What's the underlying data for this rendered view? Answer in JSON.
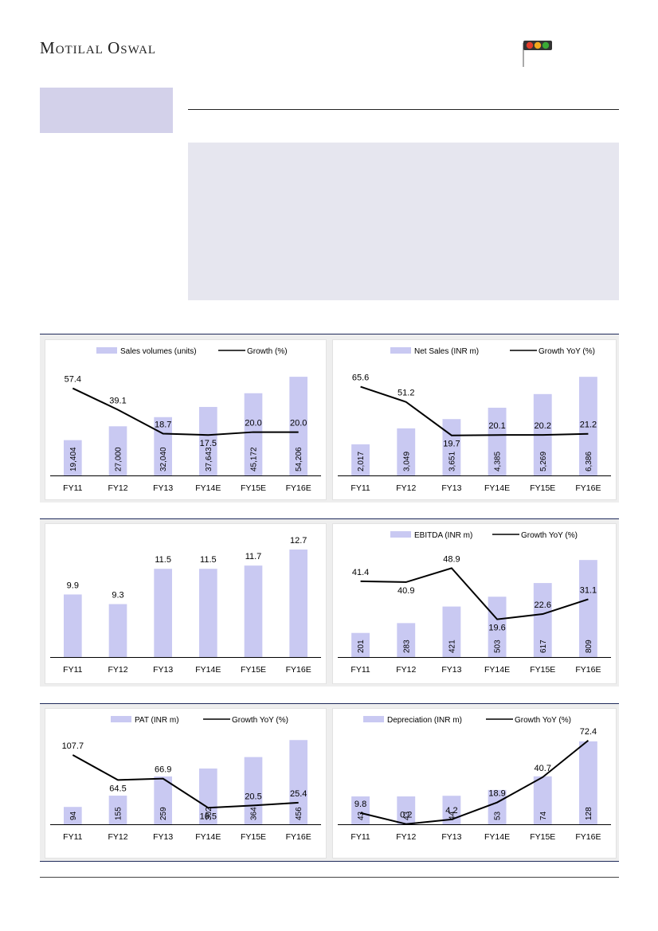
{
  "header": {
    "brand_first": "M",
    "brand_first_rest": "otilal",
    "brand_second": "O",
    "brand_second_rest": "swal"
  },
  "colors": {
    "bar": "#c9c9f2",
    "line": "#000000",
    "rule": "#1e2a5a",
    "sidebox": "#d3d1ea",
    "shade": "#e6e6ef",
    "signal_red": "#e23b2a",
    "signal_amber": "#f2a81d",
    "signal_green": "#3aa935"
  },
  "chart_data": [
    {
      "id": "sales-volumes",
      "type": "bar",
      "categories": [
        "FY11",
        "FY12",
        "FY13",
        "FY14E",
        "FY15E",
        "FY16E"
      ],
      "series": [
        {
          "name": "Sales volumes (units)",
          "kind": "bar",
          "values": [
            19404,
            27000,
            32040,
            37643,
            45172,
            54206
          ],
          "labels": [
            "19,404",
            "27,000",
            "32,040",
            "37,643",
            "45,172",
            "54,206"
          ]
        },
        {
          "name": "Growth (%)",
          "kind": "line",
          "values": [
            57.4,
            39.1,
            18.7,
            17.5,
            20.0,
            20.0
          ],
          "labels": [
            "57.4",
            "39.1",
            "18.7",
            "17.5",
            "20.0",
            "20.0"
          ]
        }
      ],
      "bar_label_style": "rotated",
      "ylim_bar": [
        0,
        56000
      ],
      "ylim_line": [
        -17,
        70
      ]
    },
    {
      "id": "net-sales",
      "type": "bar",
      "categories": [
        "FY11",
        "FY12",
        "FY13",
        "FY14E",
        "FY15E",
        "FY16E"
      ],
      "series": [
        {
          "name": "Net Sales (INR m)",
          "kind": "bar",
          "values": [
            2017,
            3049,
            3651,
            4385,
            5269,
            6386
          ],
          "labels": [
            "2,017",
            "3,049",
            "3,651",
            "4,385",
            "5,269",
            "6,386"
          ]
        },
        {
          "name": "Growth YoY (%)",
          "kind": "line",
          "values": [
            65.6,
            51.2,
            19.7,
            20.1,
            20.2,
            21.2
          ],
          "labels": [
            "65.6",
            "51.2",
            "19.7",
            "20.1",
            "20.2",
            "21.2"
          ]
        }
      ],
      "bar_label_style": "rotated",
      "ylim_bar": [
        0,
        6600
      ],
      "ylim_line": [
        -18,
        78
      ]
    },
    {
      "id": "ebitda-margin",
      "type": "bar",
      "categories": [
        "FY11",
        "FY12",
        "FY13",
        "FY14E",
        "FY15E",
        "FY16E"
      ],
      "series": [
        {
          "name": "",
          "kind": "bar",
          "values": [
            9.9,
            9.3,
            11.5,
            11.5,
            11.7,
            12.7
          ],
          "labels": [
            "9.9",
            "9.3",
            "11.5",
            "11.5",
            "11.7",
            "12.7"
          ]
        }
      ],
      "bar_label_style": "top",
      "ylim_bar": [
        6.0,
        12.9
      ]
    },
    {
      "id": "ebitda",
      "type": "bar",
      "categories": [
        "FY11",
        "FY12",
        "FY13",
        "FY14E",
        "FY15E",
        "FY16E"
      ],
      "series": [
        {
          "name": "EBITDA (INR m)",
          "kind": "bar",
          "values": [
            201,
            283,
            421,
            503,
            617,
            809
          ],
          "labels": [
            "201",
            "283",
            "421",
            "503",
            "617",
            "809"
          ]
        },
        {
          "name": "Growth YoY (%)",
          "kind": "line",
          "values": [
            41.4,
            40.9,
            48.9,
            19.6,
            22.6,
            31.1
          ],
          "labels": [
            "41.4",
            "40.9",
            "48.9",
            "19.6",
            "22.6",
            "31.1"
          ]
        }
      ],
      "bar_label_style": "rotated",
      "ylim_bar": [
        0,
        830
      ],
      "ylim_line": [
        -2,
        55
      ]
    },
    {
      "id": "pat",
      "type": "bar",
      "categories": [
        "FY11",
        "FY12",
        "FY13",
        "FY14E",
        "FY15E",
        "FY16E"
      ],
      "series": [
        {
          "name": "PAT (INR m)",
          "kind": "bar",
          "values": [
            94,
            155,
            259,
            302,
            364,
            456
          ],
          "labels": [
            "94",
            "155",
            "259",
            "302",
            "364",
            "456"
          ]
        },
        {
          "name": "Growth YoY (%)",
          "kind": "line",
          "values": [
            107.7,
            64.5,
            66.9,
            16.5,
            20.5,
            25.4
          ],
          "labels": [
            "107.7",
            "64.5",
            "66.9",
            "16.5",
            "20.5",
            "25.4"
          ]
        }
      ],
      "bar_label_style": "rotated",
      "ylim_bar": [
        0,
        470
      ],
      "ylim_line": [
        -12,
        138
      ]
    },
    {
      "id": "depreciation",
      "type": "bar",
      "categories": [
        "FY11",
        "FY12",
        "FY13",
        "FY14E",
        "FY15E",
        "FY16E"
      ],
      "series": [
        {
          "name": "Depreciation (INR m)",
          "kind": "bar",
          "values": [
            43,
            43,
            44,
            53,
            74,
            128
          ],
          "labels": [
            "43",
            "43",
            "44",
            "53",
            "74",
            "128"
          ]
        },
        {
          "name": "Growth YoY (%)",
          "kind": "line",
          "values": [
            9.8,
            0.2,
            4.2,
            18.9,
            40.7,
            72.4
          ],
          "labels": [
            "9.8",
            "0.2",
            "4.2",
            "18.9",
            "40.7",
            "72.4"
          ]
        }
      ],
      "bar_label_style": "rotated",
      "ylim_bar": [
        0,
        134
      ],
      "ylim_line": [
        0,
        75
      ]
    }
  ]
}
